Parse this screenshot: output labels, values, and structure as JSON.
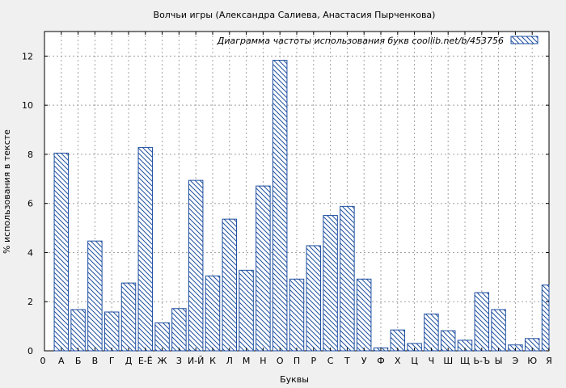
{
  "chart_data": {
    "type": "bar",
    "title": "Волчьи игры (Александра Салиева, Анастасия Пырченкова)",
    "legend_label": "Диаграмма частоты использования букв  coollib.net/b/453756",
    "legend_position": "top-right",
    "xlabel": "Буквы",
    "ylabel": "% использования в тексте",
    "ylim": [
      0,
      13
    ],
    "yticks": [
      0,
      2,
      4,
      6,
      8,
      10,
      12
    ],
    "grid": true,
    "x_start_label": "0",
    "categories": [
      "А",
      "Б",
      "В",
      "Г",
      "Д",
      "Е-Ё",
      "Ж",
      "З",
      "И-Й",
      "К",
      "Л",
      "М",
      "Н",
      "О",
      "П",
      "Р",
      "С",
      "Т",
      "У",
      "Ф",
      "Х",
      "Ц",
      "Ч",
      "Ш",
      "Щ",
      "Ь-Ъ",
      "Ы",
      "Э",
      "Ю",
      "Я"
    ],
    "values": [
      8.05,
      1.68,
      4.47,
      1.58,
      2.76,
      8.28,
      1.14,
      1.72,
      6.94,
      3.05,
      5.36,
      3.28,
      6.71,
      11.83,
      2.92,
      4.28,
      5.51,
      5.88,
      2.92,
      0.12,
      0.85,
      0.3,
      1.5,
      0.82,
      0.43,
      2.37,
      1.68,
      0.24,
      0.5,
      2.68
    ],
    "colors": {
      "bar_stroke": "#1f4fa0",
      "hatch": "#1f4fa0",
      "plot_bg": "#ffffff",
      "page_bg": "#f0f0f0",
      "grid": "#a0a0a0"
    }
  }
}
